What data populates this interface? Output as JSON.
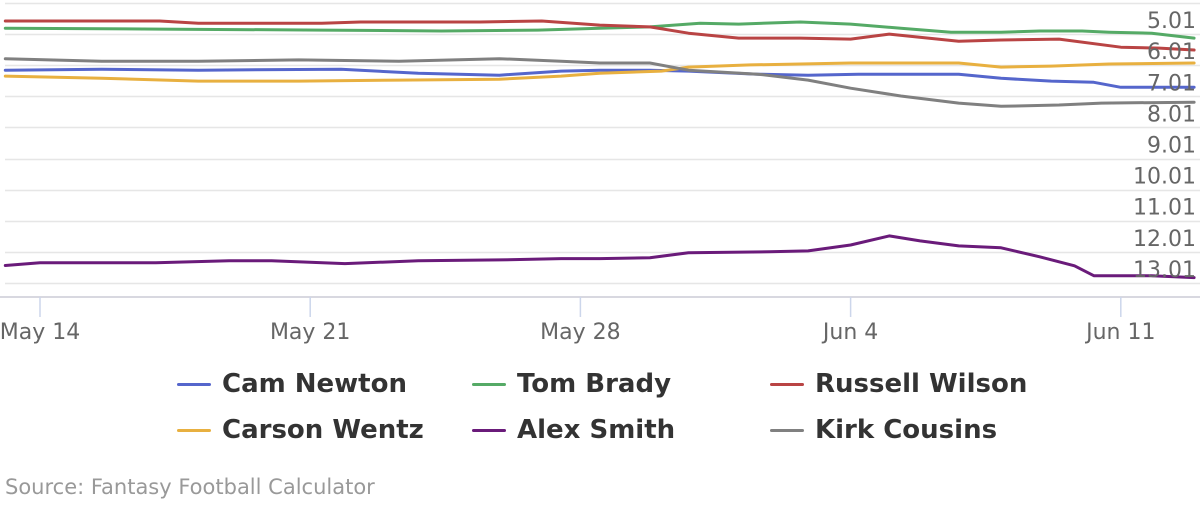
{
  "chart_data": {
    "type": "line",
    "title": "",
    "xlabel": "",
    "ylabel": "",
    "x_axis": {
      "ticks": [
        "May 14",
        "May 21",
        "May 28",
        "Jun 4",
        "Jun 11"
      ],
      "tick_days": [
        0,
        7,
        14,
        21,
        28
      ],
      "range_days": [
        -0.9,
        29.9
      ]
    },
    "y_axis": {
      "reversed": true,
      "position": "right",
      "ticks": [
        "5.01",
        "6.01",
        "7.01",
        "8.01",
        "9.01",
        "10.01",
        "11.01",
        "12.01",
        "13.01"
      ],
      "ylim": [
        4.01,
        14.01
      ],
      "grid": true
    },
    "legend_position": "bottom",
    "series": [
      {
        "name": "Cam Newton",
        "color": "#5566cc",
        "points": [
          [
            -0.9,
            6.17
          ],
          [
            1.6,
            6.14
          ],
          [
            4.1,
            6.17
          ],
          [
            7.8,
            6.14
          ],
          [
            9.8,
            6.27
          ],
          [
            11.9,
            6.33
          ],
          [
            13.5,
            6.2
          ],
          [
            14.5,
            6.17
          ],
          [
            15.8,
            6.17
          ],
          [
            16.8,
            6.2
          ],
          [
            18.6,
            6.3
          ],
          [
            19.9,
            6.33
          ],
          [
            21.2,
            6.3
          ],
          [
            23.8,
            6.3
          ],
          [
            24.9,
            6.43
          ],
          [
            26.2,
            6.52
          ],
          [
            27.3,
            6.56
          ],
          [
            28.0,
            6.72
          ],
          [
            29.9,
            6.72
          ]
        ]
      },
      {
        "name": "Tom Brady",
        "color": "#55aa66",
        "points": [
          [
            -0.9,
            4.82
          ],
          [
            3.1,
            4.85
          ],
          [
            7.3,
            4.88
          ],
          [
            10.4,
            4.91
          ],
          [
            12.9,
            4.88
          ],
          [
            14.5,
            4.82
          ],
          [
            15.8,
            4.78
          ],
          [
            17.1,
            4.66
          ],
          [
            18.1,
            4.69
          ],
          [
            19.7,
            4.62
          ],
          [
            21.0,
            4.69
          ],
          [
            22.3,
            4.82
          ],
          [
            23.6,
            4.95
          ],
          [
            24.9,
            4.95
          ],
          [
            25.9,
            4.91
          ],
          [
            27.0,
            4.91
          ],
          [
            27.7,
            4.95
          ],
          [
            28.8,
            4.98
          ],
          [
            29.9,
            5.14
          ]
        ]
      },
      {
        "name": "Russell Wilson",
        "color": "#b94444",
        "points": [
          [
            -0.9,
            4.59
          ],
          [
            3.1,
            4.59
          ],
          [
            4.1,
            4.66
          ],
          [
            7.3,
            4.66
          ],
          [
            8.3,
            4.62
          ],
          [
            11.4,
            4.62
          ],
          [
            13.0,
            4.59
          ],
          [
            14.5,
            4.72
          ],
          [
            15.8,
            4.78
          ],
          [
            16.8,
            4.98
          ],
          [
            18.1,
            5.14
          ],
          [
            19.7,
            5.14
          ],
          [
            21.0,
            5.17
          ],
          [
            22.0,
            5.01
          ],
          [
            23.8,
            5.24
          ],
          [
            24.9,
            5.2
          ],
          [
            26.4,
            5.17
          ],
          [
            28.0,
            5.43
          ],
          [
            29.0,
            5.46
          ],
          [
            29.9,
            5.52
          ]
        ]
      },
      {
        "name": "Carson Wentz",
        "color": "#e8b040",
        "points": [
          [
            -0.9,
            6.36
          ],
          [
            1.6,
            6.43
          ],
          [
            4.1,
            6.52
          ],
          [
            6.7,
            6.52
          ],
          [
            9.3,
            6.49
          ],
          [
            11.9,
            6.46
          ],
          [
            13.5,
            6.36
          ],
          [
            14.5,
            6.27
          ],
          [
            16.1,
            6.2
          ],
          [
            16.8,
            6.07
          ],
          [
            18.4,
            6.0
          ],
          [
            19.7,
            5.97
          ],
          [
            21.0,
            5.94
          ],
          [
            23.8,
            5.94
          ],
          [
            24.9,
            6.07
          ],
          [
            26.2,
            6.04
          ],
          [
            27.7,
            5.97
          ],
          [
            29.9,
            5.94
          ]
        ]
      },
      {
        "name": "Alex Smith",
        "color": "#6a1b7a",
        "points": [
          [
            -0.9,
            12.45
          ],
          [
            0.0,
            12.36
          ],
          [
            3.0,
            12.36
          ],
          [
            4.9,
            12.3
          ],
          [
            6.0,
            12.3
          ],
          [
            7.9,
            12.39
          ],
          [
            9.8,
            12.3
          ],
          [
            11.9,
            12.27
          ],
          [
            13.5,
            12.23
          ],
          [
            14.5,
            12.23
          ],
          [
            15.8,
            12.2
          ],
          [
            16.8,
            12.04
          ],
          [
            18.9,
            12.01
          ],
          [
            19.9,
            11.98
          ],
          [
            21.0,
            11.79
          ],
          [
            22.0,
            11.5
          ],
          [
            22.8,
            11.66
          ],
          [
            23.8,
            11.82
          ],
          [
            24.9,
            11.88
          ],
          [
            25.9,
            12.17
          ],
          [
            26.8,
            12.46
          ],
          [
            27.3,
            12.78
          ],
          [
            28.8,
            12.78
          ],
          [
            29.9,
            12.84
          ]
        ]
      },
      {
        "name": "Kirk Cousins",
        "color": "#808080",
        "points": [
          [
            -0.9,
            5.8
          ],
          [
            1.6,
            5.88
          ],
          [
            4.1,
            5.88
          ],
          [
            6.7,
            5.84
          ],
          [
            9.3,
            5.88
          ],
          [
            11.9,
            5.8
          ],
          [
            13.5,
            5.88
          ],
          [
            14.5,
            5.94
          ],
          [
            15.8,
            5.94
          ],
          [
            16.8,
            6.17
          ],
          [
            18.6,
            6.3
          ],
          [
            19.9,
            6.49
          ],
          [
            21.0,
            6.75
          ],
          [
            22.3,
            7.0
          ],
          [
            23.8,
            7.23
          ],
          [
            24.9,
            7.33
          ],
          [
            26.4,
            7.29
          ],
          [
            27.5,
            7.23
          ],
          [
            29.9,
            7.2
          ]
        ]
      }
    ]
  },
  "legend": {
    "items": [
      {
        "label": "Cam Newton",
        "color": "#5566cc"
      },
      {
        "label": "Tom Brady",
        "color": "#55aa66"
      },
      {
        "label": "Russell Wilson",
        "color": "#b94444"
      },
      {
        "label": "Carson Wentz",
        "color": "#e8b040"
      },
      {
        "label": "Alex Smith",
        "color": "#6a1b7a"
      },
      {
        "label": "Kirk Cousins",
        "color": "#808080"
      }
    ]
  },
  "source": "Source: Fantasy Football Calculator"
}
